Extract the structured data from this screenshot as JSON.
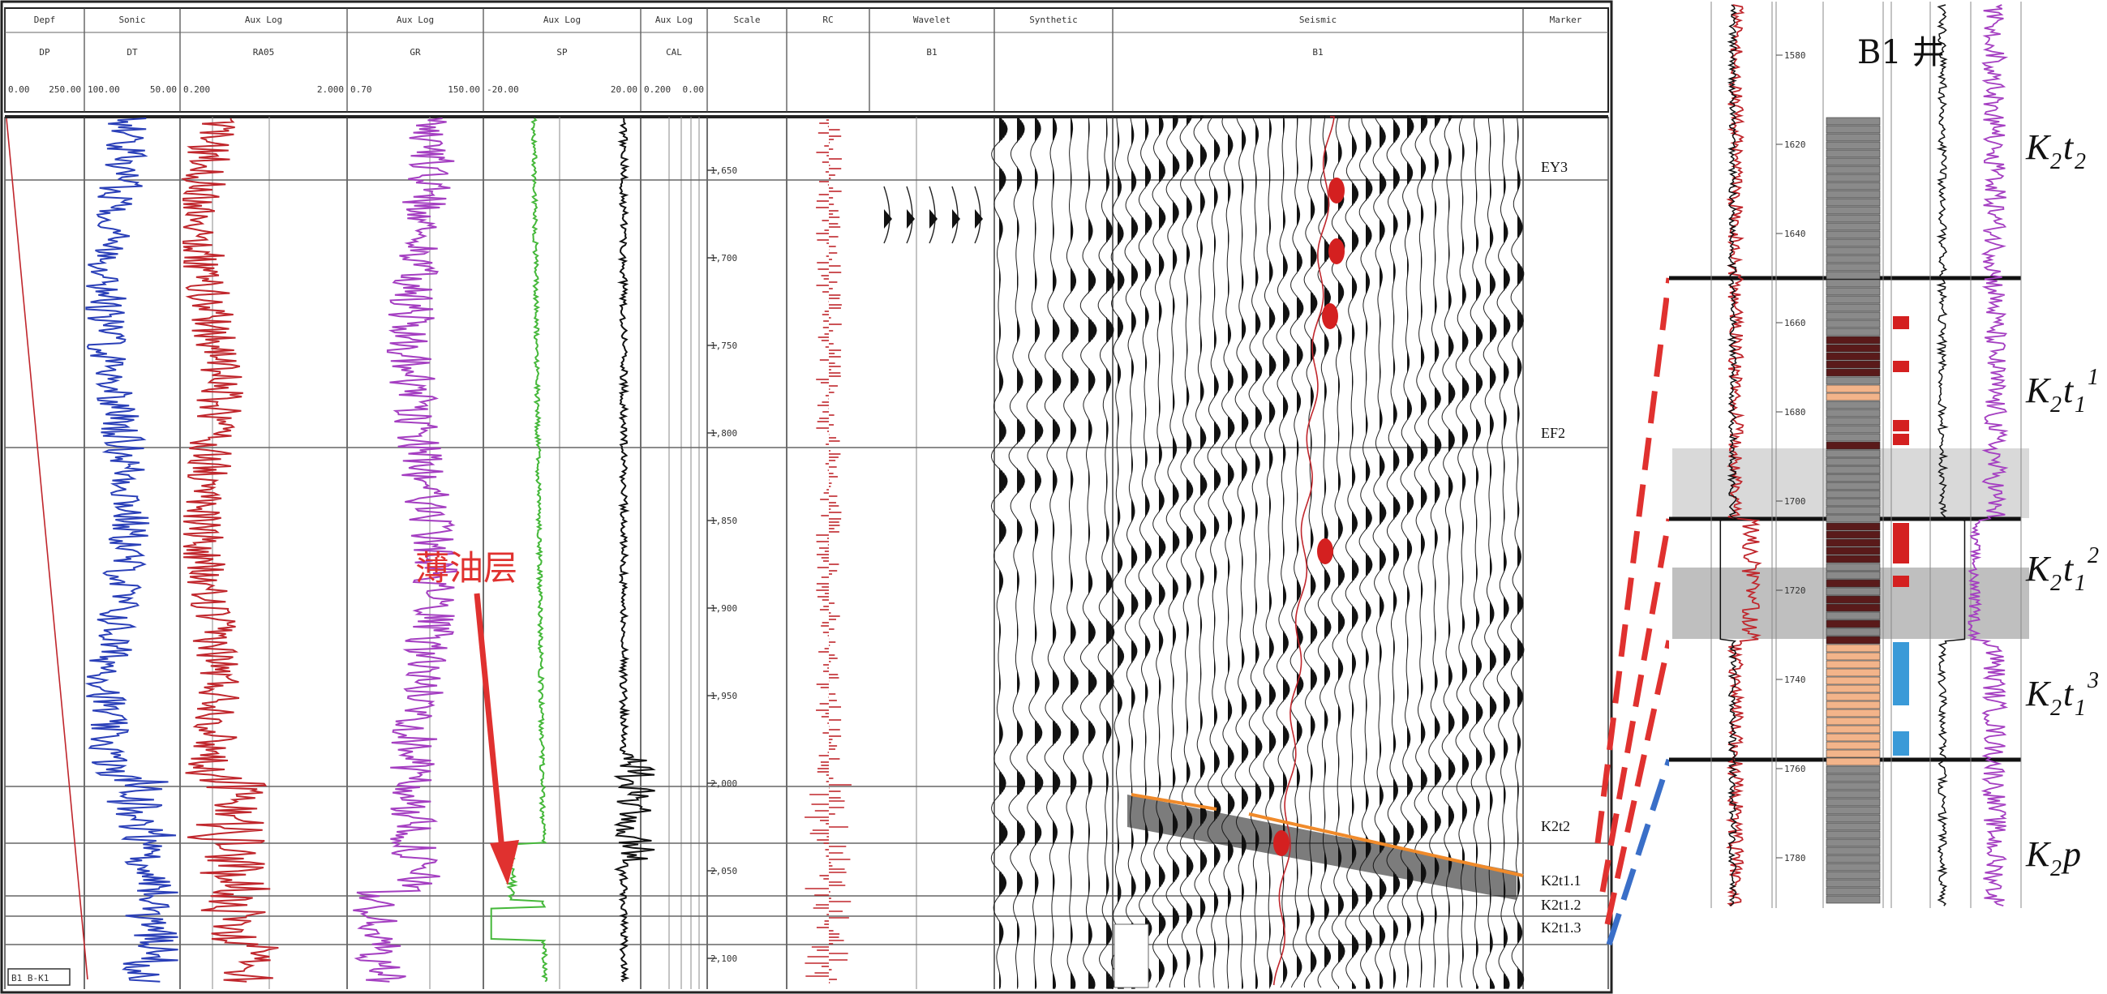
{
  "log_panel": {
    "headers": [
      {
        "title": "Depf",
        "curve": "DP",
        "range_left": "0.00",
        "range_right": "250.00"
      },
      {
        "title": "Sonic",
        "curve": "DT",
        "range_left": "100.00",
        "range_right": "50.00"
      },
      {
        "title": "Aux Log",
        "curve": "RA05",
        "range_left": "0.200",
        "range_right": "2.000"
      },
      {
        "title": "Aux Log",
        "curve": "GR",
        "range_left": "0.70",
        "range_right": "150.00"
      },
      {
        "title": "Aux Log",
        "curve": "SP",
        "range_left": "-20.00",
        "range_right": "20.00"
      },
      {
        "title": "Aux Log",
        "curve": "CAL",
        "range_left": "0.200",
        "range_right": "0.00"
      },
      {
        "title": "Scale",
        "curve": "",
        "range_left": "",
        "range_right": ""
      },
      {
        "title": "RC",
        "curve": "",
        "range_left": "",
        "range_right": ""
      },
      {
        "title": "Wavelet",
        "curve": "B1",
        "range_left": "",
        "range_right": ""
      },
      {
        "title": "Synthetic",
        "curve": "",
        "range_left": "",
        "range_right": ""
      },
      {
        "title": "Seismic",
        "curve": "B1",
        "range_left": "",
        "range_right": ""
      },
      {
        "title": "Marker",
        "curve": "",
        "range_left": "",
        "range_right": ""
      }
    ],
    "time_ticks": [
      "1,650",
      "1,700",
      "1,750",
      "1,800",
      "1,850",
      "1,900",
      "1,950",
      "2,000",
      "2,050",
      "2,100"
    ],
    "markers": [
      "EY3",
      "EF2",
      "K2t2",
      "K2t1.1",
      "K2t1.2",
      "K2t1.3"
    ],
    "annotation": "薄油层",
    "bottom_label": "B1 B-K1"
  },
  "well_panel": {
    "title": "B1 井",
    "depth_ticks": [
      "1580",
      "1620",
      "1640",
      "1660",
      "1680",
      "1700",
      "1720",
      "1740",
      "1760",
      "1780"
    ],
    "formations": [
      {
        "main": "K",
        "sub": "2",
        "letter": "t",
        "sub2": "2",
        "sup": ""
      },
      {
        "main": "K",
        "sub": "2",
        "letter": "t",
        "sub2": "1",
        "sup": "1"
      },
      {
        "main": "K",
        "sub": "2",
        "letter": "t",
        "sub2": "1",
        "sup": "2"
      },
      {
        "main": "K",
        "sub": "2",
        "letter": "t",
        "sub2": "1",
        "sup": "3"
      },
      {
        "main": "K",
        "sub": "2",
        "letter": " p",
        "sub2": "",
        "sup": ""
      }
    ]
  },
  "colors": {
    "sonic": "#2a3fb8",
    "resistivity": "#c0262c",
    "gamma": "#a43ec1",
    "sp": "#45b83a",
    "cal": "#111111",
    "annotation": "#e0312f",
    "tie_red": "#e0312f",
    "tie_blue": "#3a6fc8",
    "horizon": "#f08a2a",
    "oil": "#d42020",
    "water": "#3a9ad8",
    "sand": "#f3b48a"
  }
}
